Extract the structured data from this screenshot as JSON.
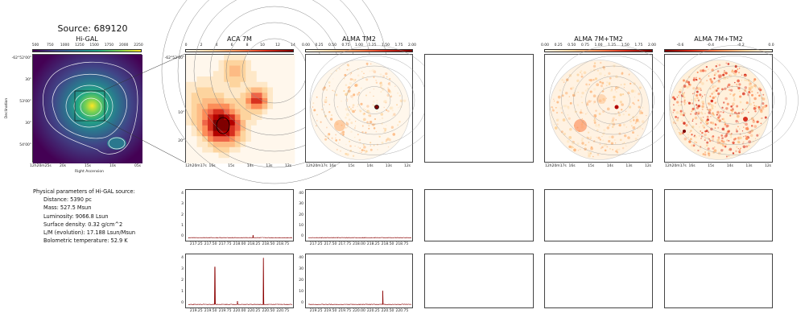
{
  "figure": {
    "source_title": "Source: 689120"
  },
  "params": {
    "header": "Physical parameters of Hi-GAL source:",
    "rows": [
      "Distance: 5390 pc",
      "Mass: 527.5 Msun",
      "Luminosity: 9066.8 Lsun",
      "Surface density: 0.32 g/cm^2",
      "L/M (evolution): 17.188 Lsun/Msun",
      "Bolometric temperature: 52.9 K"
    ]
  },
  "colors": {
    "viridis": [
      "#440154",
      "#414487",
      "#2a788e",
      "#22a884",
      "#7ad151",
      "#fde725"
    ],
    "orrd": [
      "#fff7ec",
      "#fdd49e",
      "#fc8d59",
      "#d7301f",
      "#7f0000"
    ],
    "spectrum_line": "#8b0000"
  },
  "chart_data": [
    {
      "type": "heatmap",
      "panel": "Hi-GAL",
      "title": "Hi-GAL",
      "colorbar_ticks": [
        "500",
        "750",
        "1000",
        "1250",
        "1500",
        "1750",
        "2000",
        "2250"
      ],
      "ylabel": "Declination",
      "xlabel": "Right Ascension",
      "y_ticks": [
        "-62°52'00\"",
        "30\"",
        "53'00\"",
        "30\"",
        "54'00\""
      ],
      "x_ticks": [
        "12h20m25s",
        "20s",
        "15s",
        "10s",
        "05s"
      ]
    },
    {
      "type": "heatmap",
      "panel": "ACA 7M",
      "title": "ACA 7M",
      "colorbar_ticks": [
        "0",
        "2",
        "4",
        "6",
        "8",
        "10",
        "12",
        "14"
      ],
      "y_ticks": [
        "-62°53'00\"",
        "10\"",
        "20\""
      ],
      "x_ticks": [
        "12h20m17s",
        "16s",
        "15s",
        "14s",
        "13s",
        "12s"
      ]
    },
    {
      "type": "heatmap",
      "panel": "ALMA TM2",
      "title": "ALMA TM2",
      "colorbar_ticks": [
        "0.00",
        "0.25",
        "0.50",
        "0.75",
        "1.00",
        "1.25",
        "1.50",
        "1.75",
        "2.00"
      ],
      "x_ticks": [
        "12h20m17s",
        "16s",
        "15s",
        "14s",
        "13s",
        "12s"
      ]
    },
    {
      "type": "heatmap",
      "panel": "ALMA 7M+TM2",
      "title": "ALMA 7M+TM2",
      "colorbar_ticks": [
        "0.00",
        "0.25",
        "0.50",
        "0.75",
        "1.00",
        "1.25",
        "1.50",
        "1.75",
        "2.00"
      ],
      "x_ticks": [
        "12h20m17s",
        "16s",
        "15s",
        "14s",
        "13s",
        "12s"
      ]
    },
    {
      "type": "heatmap",
      "panel": "ALMA 7M+TM2 (2)",
      "title": "ALMA 7M+TM2",
      "colorbar_ticks": [
        "-0.6",
        "-0.4",
        "-0.2",
        "0.0"
      ],
      "x_ticks": [
        "12h20m17s",
        "16s",
        "15s",
        "14s",
        "13s",
        "12s"
      ]
    },
    {
      "type": "line",
      "panel": "spectrum ACA row1",
      "x_ticks": [
        "217.25",
        "217.50",
        "217.75",
        "218.00",
        "218.25",
        "218.50",
        "218.75"
      ],
      "y_ticks": [
        "0",
        "1",
        "2",
        "3",
        "4"
      ],
      "xlim": [
        217.1,
        218.9
      ],
      "ylim": [
        -0.2,
        4.2
      ],
      "baseline": 0.0,
      "peaks": [
        {
          "x": 218.22,
          "y": 0.25
        }
      ]
    },
    {
      "type": "line",
      "panel": "spectrum TM2 row1",
      "x_ticks": [
        "217.25",
        "217.50",
        "217.75",
        "218.00",
        "218.25",
        "218.50",
        "218.75"
      ],
      "y_ticks": [
        "0",
        "10",
        "20",
        "30",
        "40"
      ],
      "xlim": [
        217.1,
        218.9
      ],
      "ylim": [
        -2,
        42
      ],
      "baseline": 0.0,
      "peaks": []
    },
    {
      "type": "line",
      "panel": "spectrum ACA row2",
      "x_ticks": [
        "219.25",
        "219.50",
        "219.75",
        "220.00",
        "220.25",
        "220.50",
        "220.75"
      ],
      "y_ticks": [
        "0",
        "1",
        "2",
        "3",
        "4"
      ],
      "xlim": [
        219.1,
        220.9
      ],
      "ylim": [
        -0.2,
        4.2
      ],
      "baseline": 0.0,
      "peaks": [
        {
          "x": 219.56,
          "y": 3.3
        },
        {
          "x": 219.95,
          "y": 0.3
        },
        {
          "x": 220.4,
          "y": 4.1
        }
      ]
    },
    {
      "type": "line",
      "panel": "spectrum TM2 row2",
      "x_ticks": [
        "219.25",
        "219.50",
        "219.75",
        "220.00",
        "220.25",
        "220.50",
        "220.75"
      ],
      "y_ticks": [
        "0",
        "10",
        "20",
        "30",
        "40"
      ],
      "xlim": [
        219.1,
        220.9
      ],
      "ylim": [
        -2,
        42
      ],
      "baseline": 0.0,
      "peaks": [
        {
          "x": 220.4,
          "y": 12
        }
      ]
    }
  ]
}
